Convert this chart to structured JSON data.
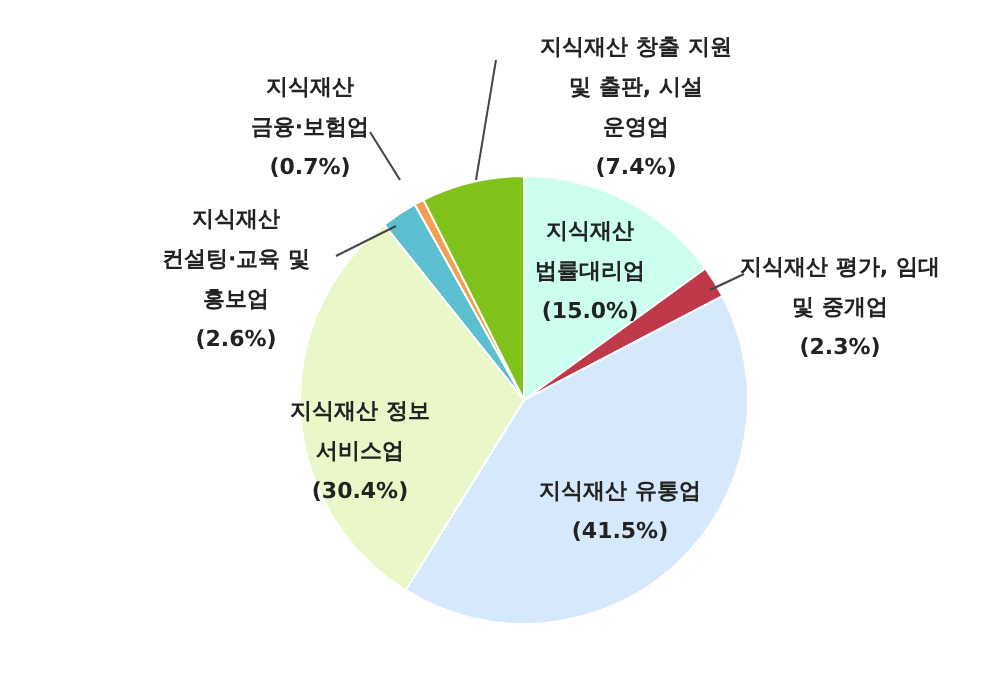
{
  "chart_data": {
    "type": "pie",
    "categories": [
      "지식재산\n법률대리업",
      "지식재산 평가, 임대\n및 중개업",
      "지식재산 유통업",
      "지식재산 정보\n서비스업",
      "지식재산\n컨설팅·교육 및\n홍보업",
      "지식재산\n금융·보험업",
      "지식재산 창출 지원\n및 출판, 시설\n운영업"
    ],
    "values": [
      15.0,
      2.3,
      41.5,
      30.4,
      2.6,
      0.7,
      7.4
    ],
    "value_labels": [
      "(15.0%)",
      "(2.3%)",
      "(41.5%)",
      "(30.4%)",
      "(2.6%)",
      "(0.7%)",
      "(7.4%)"
    ],
    "colors": [
      "#ccfff0",
      "#c0394b",
      "#d6e8fb",
      "#eaf7c8",
      "#5bbfcf",
      "#f0a050",
      "#7ec21a"
    ]
  }
}
